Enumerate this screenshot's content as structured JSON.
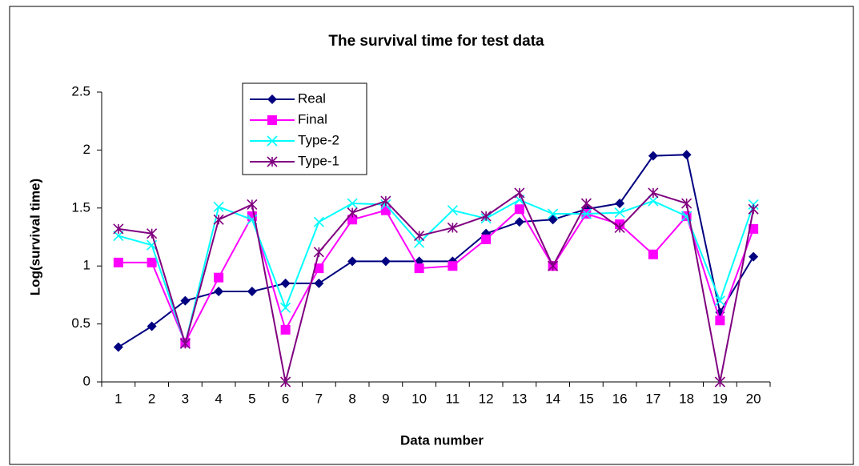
{
  "chart_data": {
    "type": "line",
    "title": "The survival time for test data",
    "x_label": "Data number",
    "y_label": "Log(survival time)",
    "categories": [
      "1",
      "2",
      "3",
      "4",
      "5",
      "6",
      "7",
      "8",
      "9",
      "10",
      "11",
      "12",
      "13",
      "14",
      "15",
      "16",
      "17",
      "18",
      "19",
      "20"
    ],
    "ylim": [
      0,
      2.5
    ],
    "yticks": [
      0,
      0.5,
      1,
      1.5,
      2,
      2.5
    ],
    "series": [
      {
        "name": "Real",
        "color": "#000080",
        "marker": "diamond",
        "values": [
          0.3,
          0.48,
          0.7,
          0.78,
          0.78,
          0.85,
          0.85,
          1.04,
          1.04,
          1.04,
          1.04,
          1.28,
          1.38,
          1.4,
          1.49,
          1.54,
          1.95,
          1.96,
          0.6,
          1.08
        ]
      },
      {
        "name": "Final",
        "color": "#ff00ff",
        "marker": "square",
        "values": [
          1.03,
          1.03,
          0.34,
          0.9,
          1.43,
          0.45,
          0.98,
          1.4,
          1.48,
          0.98,
          1.0,
          1.23,
          1.49,
          1.0,
          1.45,
          1.36,
          1.1,
          1.43,
          0.53,
          1.32
        ]
      },
      {
        "name": "Type-2",
        "color": "#00ffff",
        "marker": "x",
        "values": [
          1.26,
          1.18,
          0.33,
          1.51,
          1.4,
          0.64,
          1.38,
          1.54,
          1.53,
          1.2,
          1.48,
          1.41,
          1.57,
          1.45,
          1.45,
          1.46,
          1.56,
          1.43,
          0.7,
          1.53
        ]
      },
      {
        "name": "Type-1",
        "color": "#800080",
        "marker": "star",
        "values": [
          1.32,
          1.28,
          0.33,
          1.4,
          1.53,
          0.0,
          1.12,
          1.46,
          1.56,
          1.26,
          1.33,
          1.43,
          1.63,
          1.0,
          1.54,
          1.33,
          1.63,
          1.54,
          0.0,
          1.49
        ]
      }
    ]
  }
}
